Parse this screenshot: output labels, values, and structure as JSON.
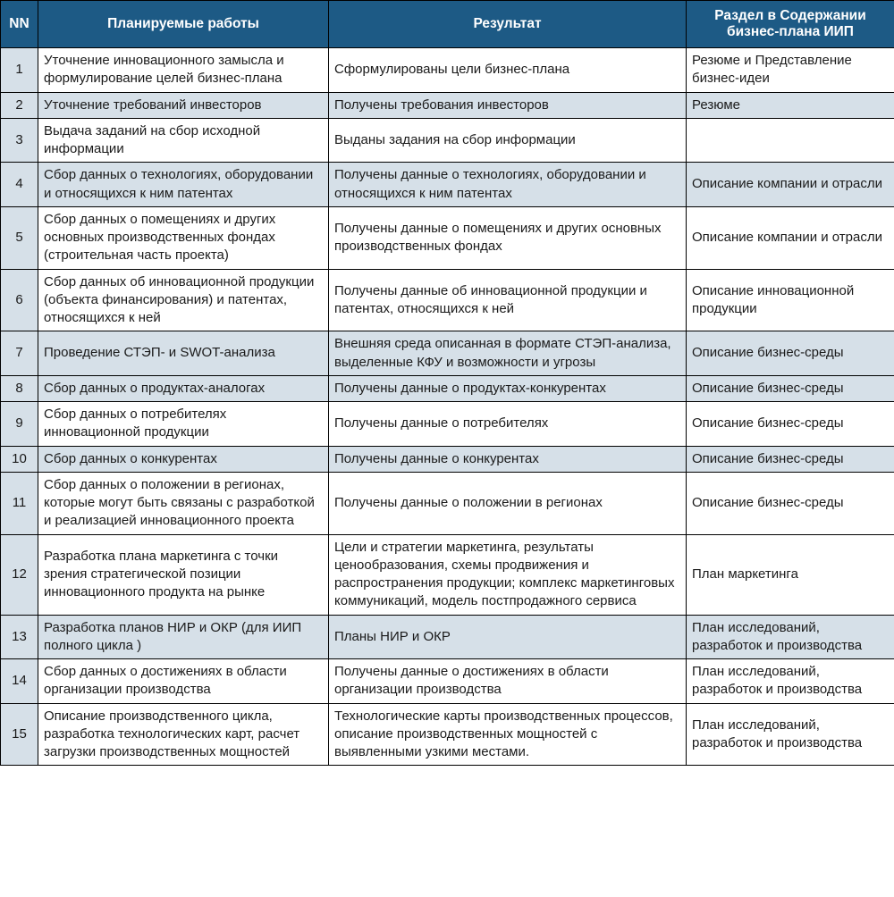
{
  "headers": {
    "nn": "NN",
    "work": "Планируемые работы",
    "result": "Результат",
    "section": "Раздел в Содержании бизнес-плана ИИП"
  },
  "colors": {
    "header_bg": "#1d5a85",
    "header_text": "#ffffff",
    "shaded_bg": "#d6e0e8",
    "border": "#000000",
    "text": "#1a1a1a"
  },
  "rows": [
    {
      "nn": "1",
      "shaded": false,
      "work": "Уточнение инновационного замысла и формулирование целей бизнес-плана",
      "result": "Сформулированы цели бизнес-плана",
      "section": "Резюме и Представление бизнес-идеи"
    },
    {
      "nn": "2",
      "shaded": true,
      "work": "Уточнение требований инвесторов",
      "result": "Получены требования инвесторов",
      "section": "Резюме"
    },
    {
      "nn": "3",
      "shaded": false,
      "work": "Выдача заданий на сбор исходной информации",
      "result": "Выданы задания на сбор информации",
      "section": ""
    },
    {
      "nn": "4",
      "shaded": true,
      "work": "Сбор данных о технологиях, оборудовании и относящихся к ним патентах",
      "result": "Получены данные о технологиях, оборудовании и относящихся к ним патентах",
      "section": "Описание компании и отрасли"
    },
    {
      "nn": "5",
      "shaded": false,
      "work": "Сбор данных о помещениях и других основных производственных фондах (строительная часть проекта)",
      "result": "Получены данные о помещениях и других основных производственных фондах",
      "section": "Описание компании и отрасли"
    },
    {
      "nn": "6",
      "shaded": false,
      "work": "Сбор данных об инновационной продукции (объекта финансирования) и патентах, относящихся к ней",
      "result": "Получены данные об инновационной продукции и патентах, относящихся к ней",
      "section": "Описание инновационной продукции"
    },
    {
      "nn": "7",
      "shaded": true,
      "work": "Проведение СТЭП- и SWOT-анализа",
      "result": "Внешняя среда описанная в формате СТЭП-анализа, выделенные КФУ и возможности и угрозы",
      "section": "Описание бизнес-среды"
    },
    {
      "nn": "8",
      "shaded": true,
      "work": "Сбор данных о продуктах-аналогах",
      "result": "Получены данные о продуктах-конкурентах",
      "section": "Описание бизнес-среды"
    },
    {
      "nn": "9",
      "shaded": false,
      "work": "Сбор данных о потребителях инновационной продукции",
      "result": "Получены данные о потребителях",
      "section": "Описание бизнес-среды"
    },
    {
      "nn": "10",
      "shaded": true,
      "work": "Сбор данных о конкурентах",
      "result": "Получены данные о конкурентах",
      "section": "Описание бизнес-среды"
    },
    {
      "nn": "11",
      "shaded": false,
      "work": "Сбор данных о положении в регионах, которые могут быть связаны с разработкой и реализацией инновационного проекта",
      "result": "Получены данные о положении в регионах",
      "section": "Описание бизнес-среды"
    },
    {
      "nn": "12",
      "shaded": false,
      "work": "Разработка плана маркетинга с точки зрения стратегической позиции инновационного продукта на рынке",
      "result": "Цели и стратегии маркетинга, результаты ценообразования, схемы продвижения и распространения продукции; комплекс маркетинговых коммуникаций, модель постпродажного сервиса",
      "section": "План маркетинга"
    },
    {
      "nn": "13",
      "shaded": true,
      "work": "Разработка планов НИР и ОКР (для ИИП полного цикла )",
      "result": "Планы НИР и ОКР",
      "section": "План исследований, разработок и производства"
    },
    {
      "nn": "14",
      "shaded": false,
      "work": "Сбор данных о достижениях в области организации производства",
      "result": "Получены данные о достижениях в области организации производства",
      "section": "План исследований, разработок и производства"
    },
    {
      "nn": "15",
      "shaded": false,
      "work": "Описание производственного цикла, разработка технологических карт, расчет загрузки производственных мощностей",
      "result": "Технологические карты производственных процессов, описание производственных мощностей с выявленными узкими местами.",
      "section": "План исследований, разработок и производства"
    }
  ]
}
